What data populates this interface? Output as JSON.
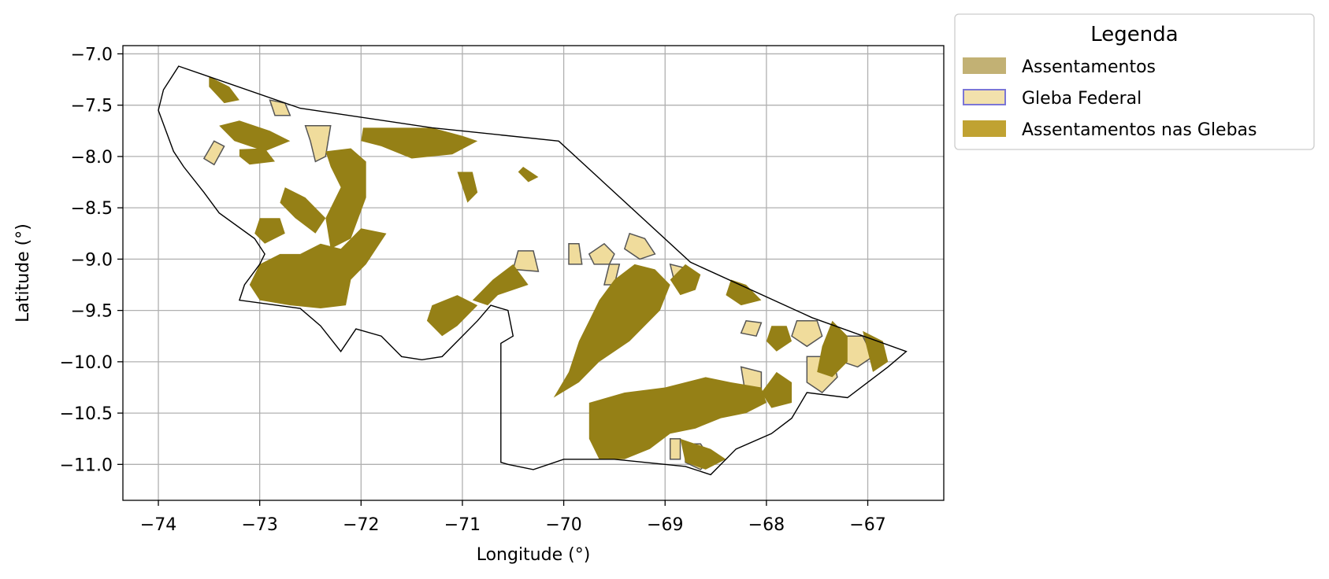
{
  "chart_data": {
    "type": "map",
    "xlabel": "Longitude (°)",
    "ylabel": "Latitude (°)",
    "xlim": [
      -74.35,
      -66.25
    ],
    "ylim": [
      -11.35,
      -6.92
    ],
    "x_ticks": [
      -74,
      -73,
      -72,
      -71,
      -70,
      -69,
      -68,
      -67
    ],
    "y_ticks": [
      -7.0,
      -7.5,
      -8.0,
      -8.5,
      -9.0,
      -9.5,
      -10.0,
      -10.5,
      -11.0
    ],
    "x_tick_labels": [
      "−74",
      "−73",
      "−72",
      "−71",
      "−70",
      "−69",
      "−68",
      "−67"
    ],
    "y_tick_labels": [
      "−7.0",
      "−7.5",
      "−8.0",
      "−8.5",
      "−9.0",
      "−9.5",
      "−10.0",
      "−10.5",
      "−11.0"
    ],
    "grid": true,
    "legend": {
      "title": "Legenda",
      "placement": "outside-right-top",
      "items": [
        {
          "label": "Assentamentos",
          "fill": "#c2b174",
          "edge": "#c2b174"
        },
        {
          "label": "Gleba Federal",
          "fill": "#f2e1ac",
          "edge": "#7b76d6"
        },
        {
          "label": "Assentamentos nas Glebas",
          "fill": "#c0a232",
          "edge": "#c0a232"
        }
      ]
    },
    "colors": {
      "assentamentos_nas_glebas": "#958016",
      "gleba_federal": "#f0dc9c",
      "gleba_edge": "#555555",
      "state_outline": "#000000",
      "grid": "#b0b0b0"
    },
    "state_outline": [
      [
        -73.8,
        -7.12
      ],
      [
        -72.6,
        -7.53
      ],
      [
        -71.3,
        -7.72
      ],
      [
        -70.05,
        -7.85
      ],
      [
        -68.75,
        -9.03
      ],
      [
        -67.55,
        -9.57
      ],
      [
        -66.62,
        -9.9
      ],
      [
        -66.8,
        -10.05
      ],
      [
        -67.2,
        -10.35
      ],
      [
        -67.6,
        -10.3
      ],
      [
        -67.75,
        -10.55
      ],
      [
        -67.95,
        -10.7
      ],
      [
        -68.3,
        -10.85
      ],
      [
        -68.55,
        -11.1
      ],
      [
        -68.8,
        -11.02
      ],
      [
        -69.5,
        -10.95
      ],
      [
        -70.0,
        -10.95
      ],
      [
        -70.3,
        -11.05
      ],
      [
        -70.55,
        -11.0
      ],
      [
        -70.62,
        -10.98
      ],
      [
        -70.62,
        -9.82
      ],
      [
        -70.5,
        -9.75
      ],
      [
        -70.55,
        -9.5
      ],
      [
        -70.72,
        -9.45
      ],
      [
        -70.85,
        -9.6
      ],
      [
        -71.05,
        -9.8
      ],
      [
        -71.2,
        -9.95
      ],
      [
        -71.4,
        -9.98
      ],
      [
        -71.6,
        -9.95
      ],
      [
        -71.8,
        -9.75
      ],
      [
        -72.05,
        -9.68
      ],
      [
        -72.2,
        -9.9
      ],
      [
        -72.4,
        -9.65
      ],
      [
        -72.6,
        -9.48
      ],
      [
        -73.2,
        -9.4
      ],
      [
        -73.15,
        -9.25
      ],
      [
        -73.0,
        -9.05
      ],
      [
        -72.95,
        -8.95
      ],
      [
        -73.05,
        -8.8
      ],
      [
        -73.4,
        -8.55
      ],
      [
        -73.55,
        -8.35
      ],
      [
        -73.75,
        -8.1
      ],
      [
        -73.85,
        -7.95
      ],
      [
        -74.0,
        -7.55
      ],
      [
        -73.95,
        -7.35
      ],
      [
        -73.8,
        -7.12
      ]
    ],
    "assentamentos_nas_glebas_polygons": [
      [
        [
          -73.5,
          -7.22
        ],
        [
          -73.3,
          -7.32
        ],
        [
          -73.2,
          -7.45
        ],
        [
          -73.35,
          -7.48
        ],
        [
          -73.5,
          -7.32
        ]
      ],
      [
        [
          -73.4,
          -7.7
        ],
        [
          -73.2,
          -7.65
        ],
        [
          -72.9,
          -7.75
        ],
        [
          -72.7,
          -7.85
        ],
        [
          -72.95,
          -7.95
        ],
        [
          -73.25,
          -7.85
        ]
      ],
      [
        [
          -73.2,
          -7.93
        ],
        [
          -72.95,
          -7.92
        ],
        [
          -72.85,
          -8.05
        ],
        [
          -73.1,
          -8.08
        ],
        [
          -73.2,
          -8.0
        ]
      ],
      [
        [
          -71.98,
          -7.72
        ],
        [
          -71.3,
          -7.72
        ],
        [
          -71.0,
          -7.8
        ],
        [
          -70.85,
          -7.85
        ],
        [
          -71.1,
          -7.98
        ],
        [
          -71.5,
          -8.02
        ],
        [
          -71.8,
          -7.9
        ],
        [
          -72.0,
          -7.85
        ]
      ],
      [
        [
          -72.35,
          -7.95
        ],
        [
          -72.1,
          -7.92
        ],
        [
          -71.95,
          -8.05
        ],
        [
          -71.95,
          -8.4
        ],
        [
          -72.1,
          -8.8
        ],
        [
          -72.3,
          -8.9
        ],
        [
          -72.35,
          -8.6
        ],
        [
          -72.2,
          -8.3
        ],
        [
          -72.3,
          -8.1
        ]
      ],
      [
        [
          -72.75,
          -8.3
        ],
        [
          -72.55,
          -8.4
        ],
        [
          -72.35,
          -8.6
        ],
        [
          -72.45,
          -8.75
        ],
        [
          -72.65,
          -8.6
        ],
        [
          -72.8,
          -8.45
        ]
      ],
      [
        [
          -73.0,
          -8.6
        ],
        [
          -72.8,
          -8.6
        ],
        [
          -72.75,
          -8.75
        ],
        [
          -72.95,
          -8.85
        ],
        [
          -73.05,
          -8.75
        ]
      ],
      [
        [
          -72.4,
          -8.85
        ],
        [
          -72.2,
          -8.9
        ],
        [
          -72.0,
          -8.7
        ],
        [
          -71.75,
          -8.75
        ],
        [
          -71.95,
          -9.05
        ],
        [
          -72.1,
          -9.2
        ],
        [
          -72.15,
          -9.45
        ],
        [
          -72.4,
          -9.48
        ],
        [
          -72.7,
          -9.45
        ],
        [
          -73.0,
          -9.4
        ],
        [
          -73.1,
          -9.25
        ],
        [
          -73.0,
          -9.05
        ],
        [
          -72.8,
          -8.95
        ],
        [
          -72.6,
          -8.95
        ]
      ],
      [
        [
          -71.05,
          -8.15
        ],
        [
          -70.9,
          -8.15
        ],
        [
          -70.85,
          -8.35
        ],
        [
          -70.95,
          -8.45
        ],
        [
          -71.0,
          -8.3
        ]
      ],
      [
        [
          -70.4,
          -8.1
        ],
        [
          -70.25,
          -8.2
        ],
        [
          -70.35,
          -8.25
        ],
        [
          -70.45,
          -8.15
        ]
      ],
      [
        [
          -70.5,
          -9.05
        ],
        [
          -70.35,
          -9.25
        ],
        [
          -70.65,
          -9.35
        ],
        [
          -70.75,
          -9.45
        ],
        [
          -70.9,
          -9.4
        ],
        [
          -70.7,
          -9.2
        ]
      ],
      [
        [
          -71.3,
          -9.45
        ],
        [
          -71.05,
          -9.35
        ],
        [
          -70.85,
          -9.45
        ],
        [
          -71.05,
          -9.65
        ],
        [
          -71.2,
          -9.75
        ],
        [
          -71.35,
          -9.6
        ]
      ],
      [
        [
          -69.65,
          -9.4
        ],
        [
          -69.5,
          -9.2
        ],
        [
          -69.3,
          -9.05
        ],
        [
          -69.1,
          -9.1
        ],
        [
          -68.95,
          -9.25
        ],
        [
          -69.05,
          -9.5
        ],
        [
          -69.35,
          -9.8
        ],
        [
          -69.65,
          -10.0
        ],
        [
          -69.85,
          -10.2
        ],
        [
          -70.1,
          -10.35
        ],
        [
          -69.95,
          -10.1
        ],
        [
          -69.85,
          -9.8
        ],
        [
          -69.75,
          -9.6
        ]
      ],
      [
        [
          -69.75,
          -10.4
        ],
        [
          -69.4,
          -10.3
        ],
        [
          -69.0,
          -10.25
        ],
        [
          -68.6,
          -10.15
        ],
        [
          -68.35,
          -10.2
        ],
        [
          -68.05,
          -10.25
        ],
        [
          -68.0,
          -10.4
        ],
        [
          -68.2,
          -10.5
        ],
        [
          -68.45,
          -10.55
        ],
        [
          -68.7,
          -10.65
        ],
        [
          -68.95,
          -10.7
        ],
        [
          -69.15,
          -10.85
        ],
        [
          -69.4,
          -10.95
        ],
        [
          -69.65,
          -10.95
        ],
        [
          -69.75,
          -10.75
        ]
      ],
      [
        [
          -68.85,
          -10.75
        ],
        [
          -68.55,
          -10.85
        ],
        [
          -68.4,
          -10.95
        ],
        [
          -68.6,
          -11.05
        ],
        [
          -68.8,
          -10.98
        ]
      ],
      [
        [
          -68.8,
          -9.05
        ],
        [
          -68.65,
          -9.15
        ],
        [
          -68.7,
          -9.3
        ],
        [
          -68.85,
          -9.35
        ],
        [
          -68.95,
          -9.2
        ]
      ],
      [
        [
          -68.35,
          -9.2
        ],
        [
          -68.2,
          -9.25
        ],
        [
          -68.05,
          -9.4
        ],
        [
          -68.25,
          -9.45
        ],
        [
          -68.4,
          -9.35
        ]
      ],
      [
        [
          -67.95,
          -9.65
        ],
        [
          -67.8,
          -9.65
        ],
        [
          -67.75,
          -9.8
        ],
        [
          -67.9,
          -9.9
        ],
        [
          -68.0,
          -9.8
        ]
      ],
      [
        [
          -67.35,
          -9.6
        ],
        [
          -67.2,
          -9.75
        ],
        [
          -67.2,
          -10.0
        ],
        [
          -67.35,
          -10.15
        ],
        [
          -67.5,
          -10.1
        ],
        [
          -67.45,
          -9.85
        ]
      ],
      [
        [
          -67.05,
          -9.7
        ],
        [
          -66.85,
          -9.8
        ],
        [
          -66.8,
          -10.0
        ],
        [
          -66.95,
          -10.1
        ],
        [
          -67.0,
          -9.9
        ]
      ],
      [
        [
          -67.9,
          -10.1
        ],
        [
          -67.75,
          -10.2
        ],
        [
          -67.75,
          -10.4
        ],
        [
          -67.95,
          -10.45
        ],
        [
          -68.05,
          -10.3
        ]
      ]
    ],
    "gleba_federal_polygons": [
      [
        [
          -73.45,
          -7.85
        ],
        [
          -73.35,
          -7.9
        ],
        [
          -73.45,
          -8.08
        ],
        [
          -73.55,
          -8.02
        ]
      ],
      [
        [
          -72.55,
          -7.7
        ],
        [
          -72.3,
          -7.7
        ],
        [
          -72.35,
          -8.0
        ],
        [
          -72.45,
          -8.05
        ],
        [
          -72.5,
          -7.85
        ]
      ],
      [
        [
          -72.9,
          -7.45
        ],
        [
          -72.75,
          -7.48
        ],
        [
          -72.7,
          -7.6
        ],
        [
          -72.85,
          -7.6
        ]
      ],
      [
        [
          -70.45,
          -8.92
        ],
        [
          -70.3,
          -8.92
        ],
        [
          -70.25,
          -9.12
        ],
        [
          -70.5,
          -9.1
        ]
      ],
      [
        [
          -69.95,
          -8.85
        ],
        [
          -69.85,
          -8.85
        ],
        [
          -69.82,
          -9.05
        ],
        [
          -69.95,
          -9.05
        ]
      ],
      [
        [
          -69.75,
          -8.95
        ],
        [
          -69.6,
          -8.85
        ],
        [
          -69.5,
          -8.95
        ],
        [
          -69.55,
          -9.05
        ],
        [
          -69.7,
          -9.05
        ]
      ],
      [
        [
          -69.35,
          -8.75
        ],
        [
          -69.2,
          -8.8
        ],
        [
          -69.1,
          -8.95
        ],
        [
          -69.25,
          -9.0
        ],
        [
          -69.4,
          -8.9
        ]
      ],
      [
        [
          -69.55,
          -9.05
        ],
        [
          -69.45,
          -9.05
        ],
        [
          -69.5,
          -9.25
        ],
        [
          -69.6,
          -9.25
        ]
      ],
      [
        [
          -68.95,
          -9.05
        ],
        [
          -68.75,
          -9.1
        ],
        [
          -68.7,
          -9.2
        ],
        [
          -68.9,
          -9.25
        ]
      ],
      [
        [
          -68.2,
          -9.6
        ],
        [
          -68.05,
          -9.62
        ],
        [
          -68.1,
          -9.75
        ],
        [
          -68.25,
          -9.72
        ]
      ],
      [
        [
          -67.7,
          -9.6
        ],
        [
          -67.5,
          -9.6
        ],
        [
          -67.45,
          -9.75
        ],
        [
          -67.6,
          -9.85
        ],
        [
          -67.75,
          -9.75
        ]
      ],
      [
        [
          -67.3,
          -9.75
        ],
        [
          -67.05,
          -9.75
        ],
        [
          -66.95,
          -9.95
        ],
        [
          -67.1,
          -10.05
        ],
        [
          -67.25,
          -10.0
        ]
      ],
      [
        [
          -67.6,
          -9.95
        ],
        [
          -67.35,
          -9.95
        ],
        [
          -67.3,
          -10.15
        ],
        [
          -67.45,
          -10.3
        ],
        [
          -67.6,
          -10.2
        ]
      ],
      [
        [
          -68.25,
          -10.05
        ],
        [
          -68.05,
          -10.1
        ],
        [
          -68.05,
          -10.3
        ],
        [
          -68.2,
          -10.35
        ]
      ],
      [
        [
          -68.8,
          -10.8
        ],
        [
          -68.65,
          -10.8
        ],
        [
          -68.55,
          -10.95
        ],
        [
          -68.65,
          -11.05
        ],
        [
          -68.8,
          -10.98
        ]
      ],
      [
        [
          -68.95,
          -10.75
        ],
        [
          -68.85,
          -10.75
        ],
        [
          -68.85,
          -10.95
        ],
        [
          -68.95,
          -10.95
        ]
      ],
      [
        [
          -68.5,
          -10.35
        ],
        [
          -68.35,
          -10.38
        ],
        [
          -68.4,
          -10.5
        ],
        [
          -68.55,
          -10.45
        ]
      ]
    ]
  }
}
